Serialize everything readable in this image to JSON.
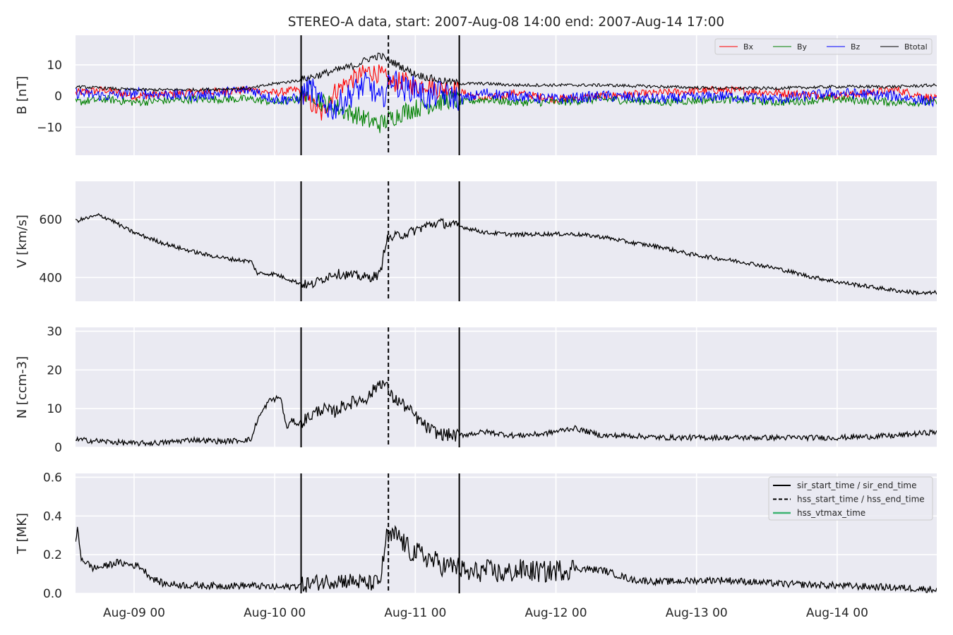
{
  "chart_data": {
    "title": "STEREO-A data, start: 2007-Aug-08 14:00  end: 2007-Aug-14 17:00",
    "x_tick_labels": [
      "Aug-09 00",
      "Aug-10 00",
      "Aug-11 00",
      "Aug-12 00",
      "Aug-13 00",
      "Aug-14 00"
    ],
    "x_ticks_hours": [
      10,
      34,
      58,
      82,
      106,
      130
    ],
    "x_range_hours": [
      0,
      147
    ],
    "vertical_lines": [
      {
        "hour": 38.5,
        "style": "solid",
        "meaning": "sir_start_time"
      },
      {
        "hour": 53.4,
        "style": "dashed",
        "meaning": "hss_start_time"
      },
      {
        "hour": 65.5,
        "style": "solid",
        "meaning": "sir_end_time"
      }
    ],
    "panels": [
      {
        "type": "line",
        "ylabel": "B [nT]",
        "ylim": [
          -19,
          19.5
        ],
        "yticks": [
          10,
          0,
          -10
        ],
        "ytick_labels": [
          "10",
          "0",
          "−10"
        ],
        "grid": true,
        "legend": "top-right",
        "series": [
          {
            "name": "Bx",
            "color": "#ff0000",
            "x": [
              0,
              5,
              10,
              20,
              30,
              34,
              38,
              40,
              42,
              44,
              46,
              48,
              50,
              52,
              54,
              56,
              58,
              60,
              62,
              64,
              66,
              70,
              75,
              82,
              90,
              100,
              110,
              120,
              130,
              140,
              147
            ],
            "y": [
              1,
              2,
              0,
              1,
              2,
              1,
              2,
              -2,
              -6,
              1,
              4,
              6,
              8,
              7,
              4,
              5,
              3,
              4,
              2,
              3,
              1,
              -1,
              1,
              -1,
              0,
              1,
              2,
              1,
              0,
              2,
              -1
            ]
          },
          {
            "name": "By",
            "color": "#008000",
            "x": [
              0,
              5,
              10,
              20,
              30,
              34,
              38,
              40,
              42,
              44,
              46,
              48,
              50,
              52,
              54,
              56,
              58,
              60,
              62,
              64,
              66,
              70,
              75,
              82,
              90,
              100,
              110,
              120,
              130,
              140,
              147
            ],
            "y": [
              -2,
              -1,
              -2,
              -1,
              -1,
              -2,
              -1,
              2,
              -2,
              -3,
              -5,
              -6,
              -8,
              -9,
              -7,
              -5,
              -4,
              -3,
              -2,
              -1,
              -2,
              -1,
              -2,
              -2,
              -1,
              -2,
              -1,
              -2,
              -1,
              -2,
              -2
            ]
          },
          {
            "name": "Bz",
            "color": "#0000ff",
            "x": [
              0,
              5,
              10,
              20,
              30,
              34,
              38,
              40,
              42,
              44,
              46,
              48,
              50,
              52,
              54,
              56,
              58,
              60,
              62,
              64,
              66,
              70,
              75,
              82,
              90,
              100,
              110,
              120,
              130,
              140,
              147
            ],
            "y": [
              1,
              0,
              1,
              0,
              2,
              -1,
              -1,
              3,
              -3,
              -4,
              -1,
              2,
              4,
              -2,
              6,
              2,
              3,
              -1,
              1,
              0,
              -1,
              1,
              0,
              -1,
              0,
              -1,
              0,
              -1,
              1,
              0,
              -2
            ]
          },
          {
            "name": "Btotal",
            "color": "#000000",
            "x": [
              0,
              5,
              10,
              20,
              30,
              34,
              38,
              40,
              42,
              44,
              46,
              48,
              50,
              52,
              54,
              56,
              58,
              60,
              62,
              64,
              66,
              70,
              75,
              82,
              90,
              100,
              110,
              120,
              130,
              140,
              147
            ],
            "y": [
              3,
              2.5,
              2,
              2,
              2.5,
              4,
              5,
              6,
              7,
              8,
              9,
              10,
              12,
              13,
              11,
              9,
              7,
              6,
              5,
              4.5,
              4,
              4,
              3.5,
              3.5,
              3.5,
              3,
              2.5,
              2.5,
              3,
              3,
              3.5
            ]
          }
        ]
      },
      {
        "type": "line",
        "ylabel": "V [km/s]",
        "ylim": [
          318,
          732
        ],
        "yticks": [
          600,
          400
        ],
        "ytick_labels": [
          "600",
          "400"
        ],
        "grid": true,
        "series": [
          {
            "name": "",
            "color": "#000000",
            "x": [
              0,
              2,
              4,
              6,
              8,
              10,
              14,
              18,
              22,
              26,
              30,
              31,
              34,
              38,
              40,
              44,
              48,
              50,
              52,
              53,
              55,
              57,
              60,
              62,
              66,
              70,
              75,
              80,
              85,
              90,
              95,
              100,
              105,
              110,
              115,
              120,
              125,
              130,
              135,
              140,
              145,
              147
            ],
            "y": [
              595,
              605,
              615,
              600,
              575,
              555,
              525,
              500,
              480,
              465,
              455,
              415,
              412,
              382,
              372,
              415,
              405,
              400,
              410,
              530,
              545,
              555,
              580,
              590,
              575,
              555,
              548,
              550,
              550,
              540,
              520,
              505,
              480,
              465,
              450,
              430,
              405,
              385,
              370,
              355,
              345,
              348
            ]
          }
        ]
      },
      {
        "type": "line",
        "ylabel": "N [ccm-3]",
        "ylim": [
          0,
          31
        ],
        "yticks": [
          30,
          20,
          10,
          0
        ],
        "ytick_labels": [
          "30",
          "20",
          "10",
          "0"
        ],
        "grid": true,
        "series": [
          {
            "name": "",
            "color": "#000000",
            "x": [
              0,
              5,
              10,
              15,
              20,
              25,
              30,
              31,
              33,
              35,
              36,
              37,
              38,
              40,
              42,
              44,
              46,
              48,
              50,
              52,
              53,
              54,
              56,
              58,
              60,
              62,
              65,
              70,
              75,
              80,
              85,
              90,
              95,
              100,
              110,
              120,
              130,
              140,
              147
            ],
            "y": [
              2,
              1.5,
              1,
              1.2,
              2,
              1.5,
              2,
              7,
              12,
              13,
              5,
              7,
              6,
              8,
              10,
              9,
              11,
              12,
              13,
              17,
              16,
              13,
              11,
              8,
              5,
              3.5,
              3,
              4,
              3,
              3.5,
              5,
              3,
              3,
              2.5,
              2.5,
              2.5,
              2.5,
              3,
              4
            ]
          }
        ]
      },
      {
        "type": "line",
        "ylabel": "T [MK]",
        "ylim": [
          0,
          0.62
        ],
        "yticks": [
          0.6,
          0.4,
          0.2,
          0.0
        ],
        "ytick_labels": [
          "0.6",
          "0.4",
          "0.2",
          "0.0"
        ],
        "grid": true,
        "legend": "top-right",
        "series": [
          {
            "name": "",
            "color": "#000000",
            "x": [
              0,
              0.3,
              1,
              3,
              5,
              7,
              9,
              11,
              13,
              15,
              20,
              30,
              35,
              38,
              42,
              45,
              48,
              50,
              52,
              53,
              55,
              57,
              59,
              61,
              63,
              65,
              67,
              70,
              73,
              76,
              80,
              85,
              90,
              95,
              100,
              110,
              120,
              130,
              140,
              147
            ],
            "y": [
              0.25,
              0.34,
              0.18,
              0.13,
              0.14,
              0.16,
              0.15,
              0.14,
              0.08,
              0.05,
              0.04,
              0.04,
              0.03,
              0.04,
              0.06,
              0.07,
              0.06,
              0.05,
              0.06,
              0.28,
              0.3,
              0.22,
              0.2,
              0.17,
              0.14,
              0.14,
              0.1,
              0.12,
              0.1,
              0.12,
              0.11,
              0.13,
              0.12,
              0.07,
              0.06,
              0.07,
              0.05,
              0.04,
              0.03,
              0.02
            ]
          }
        ]
      }
    ],
    "legends": {
      "B": [
        {
          "label": "Bx",
          "color": "#ff0000"
        },
        {
          "label": "By",
          "color": "#008000"
        },
        {
          "label": "Bz",
          "color": "#0000ff"
        },
        {
          "label": "Btotal",
          "color": "#000000"
        }
      ],
      "T": [
        {
          "label": "sir_start_time / sir_end_time",
          "color": "#000000",
          "style": "solid"
        },
        {
          "label": "hss_start_time / hss_end_time",
          "color": "#000000",
          "style": "dashed"
        },
        {
          "label": "hss_vtmax_time",
          "color": "#3cb371",
          "style": "solid"
        }
      ]
    }
  }
}
